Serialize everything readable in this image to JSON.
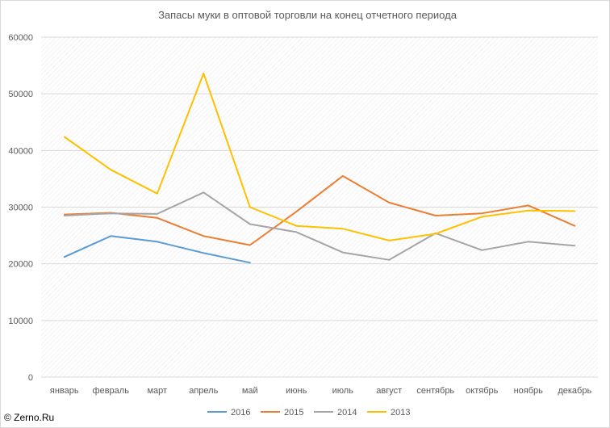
{
  "chart_data": {
    "type": "line",
    "title": "Запасы муки в оптовой торговли на конец отчетного периода",
    "xlabel": "",
    "ylabel": "",
    "ylim": [
      0,
      60000
    ],
    "yticks": [
      0,
      10000,
      20000,
      30000,
      40000,
      50000,
      60000
    ],
    "grid": true,
    "legend": "bottom",
    "categories": [
      "январь",
      "февраль",
      "март",
      "апрель",
      "май",
      "июнь",
      "июль",
      "август",
      "сентябрь",
      "октябрь",
      "ноябрь",
      "декабрь"
    ],
    "series": [
      {
        "name": "2016",
        "color": "#5b9bd5",
        "values": [
          21200,
          24900,
          23900,
          21900,
          20200,
          null,
          null,
          null,
          null,
          null,
          null,
          null
        ]
      },
      {
        "name": "2015",
        "color": "#ed7d31",
        "values": [
          28700,
          29000,
          28100,
          24900,
          23300,
          29200,
          35500,
          30800,
          28500,
          28900,
          30300,
          26700
        ]
      },
      {
        "name": "2014",
        "color": "#a5a5a5",
        "values": [
          28500,
          28900,
          28800,
          32600,
          27000,
          25600,
          22000,
          20700,
          25400,
          22400,
          23900,
          23200
        ]
      },
      {
        "name": "2013",
        "color": "#ffc000",
        "values": [
          42400,
          36600,
          32400,
          53600,
          30000,
          26700,
          26200,
          24100,
          25300,
          28300,
          29400,
          29300
        ]
      }
    ]
  },
  "watermark": "© Zerno.Ru"
}
